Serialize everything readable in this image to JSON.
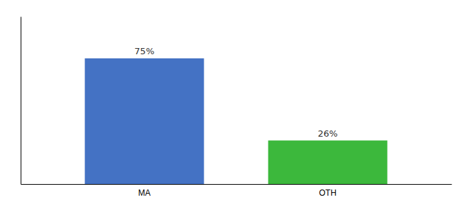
{
  "chart_data": {
    "type": "bar",
    "categories": [
      "MA",
      "OTH"
    ],
    "values": [
      75,
      26
    ],
    "value_labels": [
      "75%",
      "26%"
    ],
    "data_labels": true,
    "colors": [
      "#4472c4",
      "#3cb83c"
    ],
    "ylim": [
      0,
      100
    ],
    "tick_labels": "x"
  }
}
